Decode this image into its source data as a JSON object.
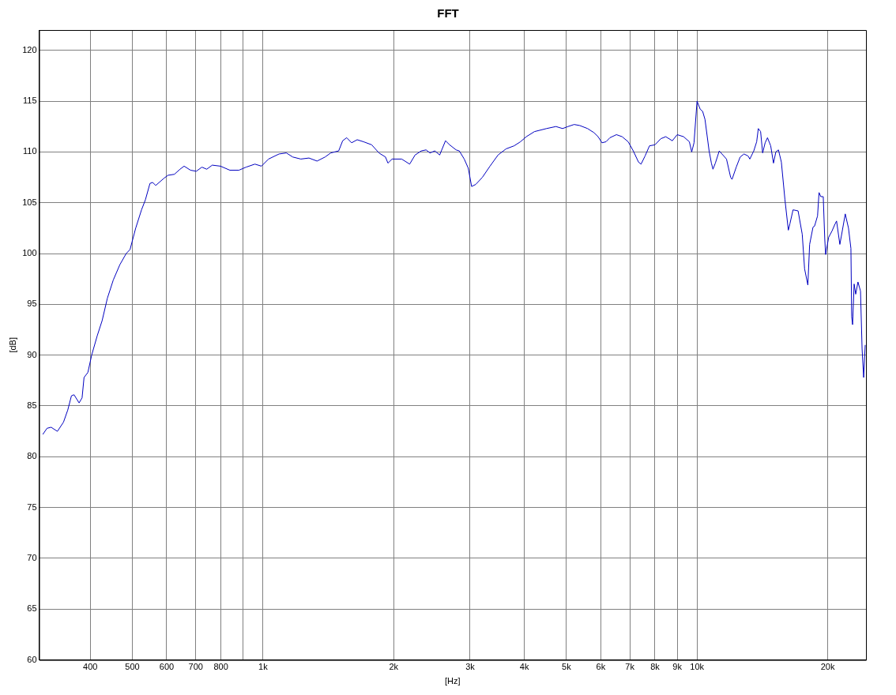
{
  "chart_data": {
    "type": "line",
    "title": "FFT",
    "xlabel": "[Hz]",
    "ylabel": "[dB]",
    "log": "x",
    "grid": true,
    "legend": false,
    "marker": "none",
    "line_style": "solid",
    "xlim": [
      305,
      24500
    ],
    "ylim": [
      60,
      122
    ],
    "xticks": [
      400,
      500,
      600,
      700,
      800,
      {
        "value": 900,
        "label": null
      },
      {
        "value": 1000,
        "label": "1k"
      },
      {
        "value": 2000,
        "label": "2k"
      },
      {
        "value": 3000,
        "label": "3k"
      },
      {
        "value": 4000,
        "label": "4k"
      },
      {
        "value": 5000,
        "label": "5k"
      },
      {
        "value": 6000,
        "label": "6k"
      },
      {
        "value": 7000,
        "label": "7k"
      },
      {
        "value": 8000,
        "label": "8k"
      },
      {
        "value": 9000,
        "label": "9k"
      },
      {
        "value": 10000,
        "label": "10k"
      },
      {
        "value": 20000,
        "label": "20k"
      }
    ],
    "yticks": [
      60,
      65,
      70,
      75,
      80,
      85,
      90,
      95,
      100,
      105,
      110,
      115,
      120
    ],
    "series": [
      {
        "color": "#0000c0",
        "x": [
          311,
          318,
          325,
          336,
          347,
          355,
          362,
          367,
          377,
          383,
          387,
          395,
          403,
          415,
          426,
          438,
          452,
          468,
          484,
          494,
          509,
          525,
          536,
          549,
          557,
          566,
          591,
          604,
          625,
          644,
          658,
          681,
          702,
          723,
          742,
          764,
          798,
          839,
          880,
          914,
          958,
          992,
          1030,
          1089,
          1132,
          1171,
          1222,
          1276,
          1332,
          1390,
          1432,
          1494,
          1526,
          1559,
          1600,
          1648,
          1705,
          1780,
          1850,
          1915,
          1940,
          1983,
          2087,
          2177,
          2241,
          2316,
          2375,
          2425,
          2488,
          2553,
          2633,
          2691,
          2785,
          2833,
          2908,
          2971,
          3024,
          3091,
          3202,
          3334,
          3480,
          3630,
          3789,
          3918,
          4043,
          4220,
          4499,
          4731,
          4900,
          5043,
          5210,
          5367,
          5595,
          5786,
          5915,
          6040,
          6170,
          6300,
          6520,
          6720,
          6940,
          7130,
          7330,
          7430,
          7590,
          7770,
          8000,
          8250,
          8470,
          8770,
          9000,
          9310,
          9600,
          9720,
          9840,
          9960,
          10000,
          10170,
          10300,
          10430,
          10660,
          10790,
          10880,
          11020,
          11250,
          11690,
          11950,
          12040,
          12310,
          12570,
          12830,
          13110,
          13230,
          13510,
          13720,
          13840,
          14010,
          14160,
          14350,
          14530,
          14780,
          15000,
          15190,
          15400,
          15640,
          15940,
          16230,
          16360,
          16640,
          17090,
          17470,
          17690,
          18000,
          18170,
          18500,
          18650,
          18950,
          19100,
          19280,
          19530,
          19690,
          19780,
          20100,
          20450,
          20790,
          20960,
          21330,
          21580,
          21950,
          22330,
          22620,
          22710,
          22820,
          23010,
          23200,
          23480,
          23800,
          24000,
          24200,
          24400
        ],
        "values": [
          82.2,
          82.8,
          82.9,
          82.5,
          83.4,
          84.6,
          86.0,
          86.1,
          85.3,
          85.8,
          87.8,
          88.3,
          90.0,
          91.9,
          93.4,
          95.6,
          97.4,
          98.9,
          100.0,
          100.4,
          102.5,
          104.3,
          105.3,
          106.9,
          107.0,
          106.7,
          107.4,
          107.7,
          107.8,
          108.3,
          108.6,
          108.2,
          108.1,
          108.5,
          108.3,
          108.7,
          108.6,
          108.2,
          108.2,
          108.5,
          108.8,
          108.6,
          109.3,
          109.8,
          109.9,
          109.5,
          109.3,
          109.4,
          109.1,
          109.5,
          109.9,
          110.1,
          111.1,
          111.4,
          110.9,
          111.2,
          111.0,
          110.7,
          109.9,
          109.5,
          108.9,
          109.3,
          109.3,
          108.8,
          109.7,
          110.1,
          110.2,
          109.9,
          110.1,
          109.7,
          111.1,
          110.7,
          110.2,
          110.1,
          109.3,
          108.4,
          106.6,
          106.8,
          107.5,
          108.6,
          109.7,
          110.3,
          110.6,
          111.0,
          111.5,
          112.0,
          112.3,
          112.5,
          112.3,
          112.5,
          112.7,
          112.6,
          112.3,
          111.9,
          111.5,
          110.9,
          111.0,
          111.4,
          111.7,
          111.5,
          111.0,
          110.1,
          109.0,
          108.8,
          109.6,
          110.6,
          110.7,
          111.3,
          111.5,
          111.1,
          111.7,
          111.5,
          111.0,
          110.0,
          110.9,
          114.0,
          115.0,
          114.2,
          114.0,
          113.2,
          110.1,
          108.9,
          108.3,
          108.9,
          110.1,
          109.3,
          107.5,
          107.3,
          108.5,
          109.5,
          109.8,
          109.6,
          109.3,
          110.1,
          111.0,
          112.3,
          112.0,
          109.9,
          110.9,
          111.4,
          110.6,
          108.9,
          110.0,
          110.2,
          109.0,
          105.3,
          102.3,
          102.9,
          104.3,
          104.2,
          101.9,
          98.5,
          96.9,
          100.9,
          102.6,
          102.7,
          103.7,
          106.0,
          105.6,
          105.6,
          101.4,
          99.9,
          101.6,
          102.2,
          102.9,
          103.2,
          100.9,
          102.1,
          103.9,
          102.5,
          100.5,
          93.8,
          93.0,
          97.0,
          96.0,
          97.2,
          96.3,
          90.6,
          87.8,
          91.0
        ]
      }
    ]
  }
}
